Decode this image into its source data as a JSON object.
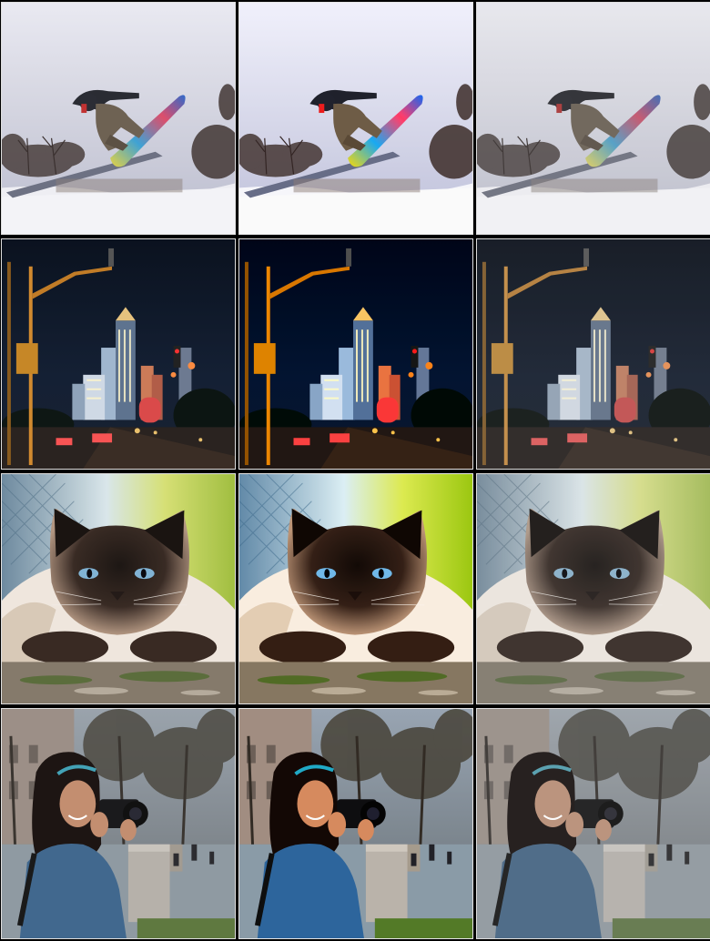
{
  "grid": {
    "rows": [
      {
        "subject": "snowboarder",
        "variants": [
          "variant-1",
          "variant-2",
          "variant-3"
        ]
      },
      {
        "subject": "city-night",
        "variants": [
          "variant-1",
          "variant-2",
          "variant-3"
        ]
      },
      {
        "subject": "cat",
        "variants": [
          "variant-1",
          "variant-2",
          "variant-3"
        ]
      },
      {
        "subject": "photographer",
        "variants": [
          "variant-1",
          "variant-2",
          "variant-3"
        ]
      }
    ]
  }
}
